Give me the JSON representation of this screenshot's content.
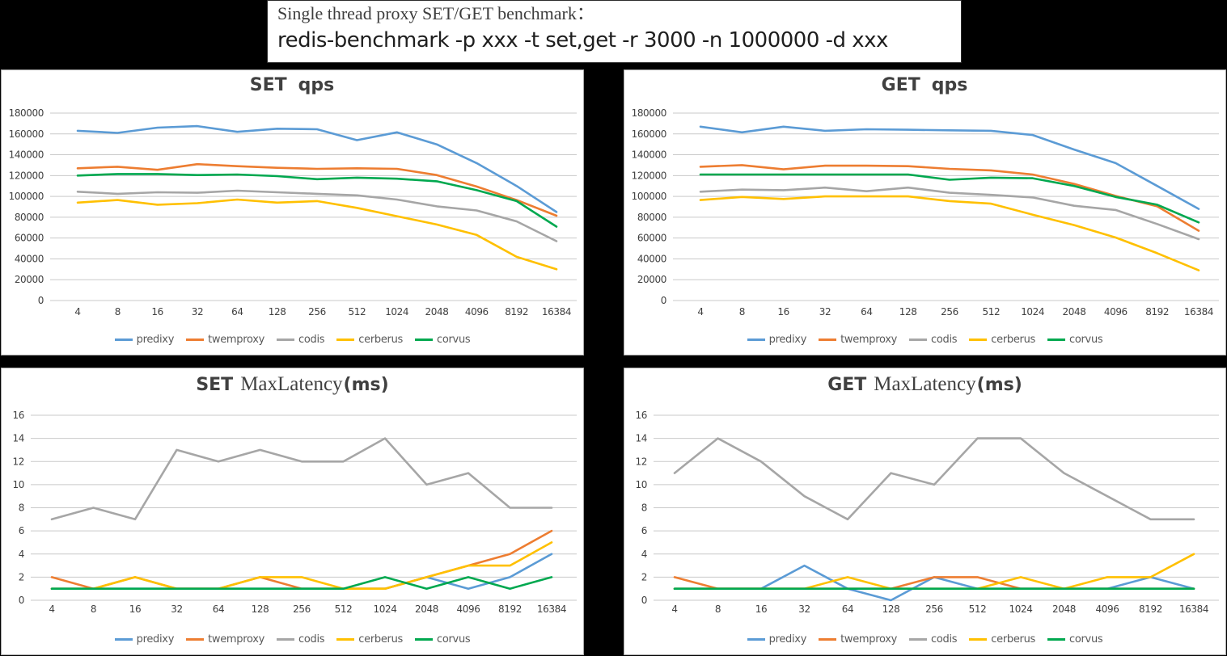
{
  "header": {
    "line1": "Single thread proxy SET/GET benchmark：",
    "line2": "redis-benchmark -p xxx -t set,get -r 3000 -n 1000000 -d xxx"
  },
  "colors": {
    "predixy": "#5B9BD5",
    "twemproxy": "#ED7D31",
    "codis": "#A6A6A6",
    "cerberus": "#FFC000",
    "corvus": "#00A84F",
    "gridline": "#C9C9C9",
    "panel_background": "#FFFFFF",
    "page_background": "#000000",
    "title_text": "#404040",
    "legend_text": "#595959"
  },
  "legend_labels": [
    "predixy",
    "twemproxy",
    "codis",
    "cerberus",
    "corvus"
  ],
  "chart_data": [
    {
      "type": "line",
      "title": "SET qps",
      "title_prefix": "SET",
      "title_main": "qps",
      "title_suffix": "",
      "categories": [
        "4",
        "8",
        "16",
        "32",
        "64",
        "128",
        "256",
        "512",
        "1024",
        "2048",
        "4096",
        "8192",
        "16384"
      ],
      "xlabel": "",
      "ylabel": "",
      "ylim": [
        0,
        180000
      ],
      "ytick_step": 20000,
      "y_ticks": [
        0,
        20000,
        40000,
        60000,
        80000,
        100000,
        120000,
        140000,
        160000,
        180000
      ],
      "grid": true,
      "legend_position": "bottom",
      "series": [
        {
          "name": "predixy",
          "color": "#5B9BD5",
          "values": [
            163000,
            161000,
            166000,
            167500,
            162000,
            165000,
            164500,
            154000,
            161500,
            150000,
            132000,
            110000,
            85000
          ]
        },
        {
          "name": "twemproxy",
          "color": "#ED7D31",
          "values": [
            127000,
            128500,
            125500,
            131000,
            129000,
            127500,
            126500,
            127000,
            126500,
            120500,
            109500,
            96500,
            81500
          ]
        },
        {
          "name": "codis",
          "color": "#A6A6A6",
          "values": [
            104500,
            102500,
            104000,
            103500,
            105500,
            104000,
            102500,
            101000,
            97000,
            90500,
            86500,
            76000,
            57000
          ]
        },
        {
          "name": "cerberus",
          "color": "#FFC000",
          "values": [
            94000,
            96500,
            92000,
            93500,
            97000,
            94000,
            95500,
            89000,
            81000,
            73000,
            63000,
            42000,
            30000
          ]
        },
        {
          "name": "corvus",
          "color": "#00A84F",
          "values": [
            120000,
            121500,
            121500,
            120500,
            121000,
            119500,
            116500,
            118000,
            117000,
            114500,
            106000,
            95500,
            71000
          ]
        }
      ]
    },
    {
      "type": "line",
      "title": "GET qps",
      "title_prefix": "GET",
      "title_main": "qps",
      "title_suffix": "",
      "categories": [
        "4",
        "8",
        "16",
        "32",
        "64",
        "128",
        "256",
        "512",
        "1024",
        "2048",
        "4096",
        "8192",
        "16384"
      ],
      "xlabel": "",
      "ylabel": "",
      "ylim": [
        0,
        180000
      ],
      "ytick_step": 20000,
      "y_ticks": [
        0,
        20000,
        40000,
        60000,
        80000,
        100000,
        120000,
        140000,
        160000,
        180000
      ],
      "grid": true,
      "legend_position": "bottom",
      "series": [
        {
          "name": "predixy",
          "color": "#5B9BD5",
          "values": [
            167000,
            161500,
            167000,
            163000,
            164500,
            164000,
            163500,
            163000,
            159000,
            145000,
            132000,
            110000,
            88000
          ]
        },
        {
          "name": "twemproxy",
          "color": "#ED7D31",
          "values": [
            128500,
            130000,
            126000,
            129500,
            129500,
            129000,
            126500,
            125000,
            121000,
            112000,
            100500,
            90500,
            67000
          ]
        },
        {
          "name": "codis",
          "color": "#A6A6A6",
          "values": [
            104500,
            106500,
            106000,
            108500,
            105000,
            108500,
            103500,
            101500,
            99000,
            91000,
            87000,
            73500,
            59000
          ]
        },
        {
          "name": "cerberus",
          "color": "#FFC000",
          "values": [
            96500,
            99500,
            97500,
            100000,
            100000,
            100000,
            95500,
            93000,
            82500,
            72500,
            60500,
            45500,
            29000
          ]
        },
        {
          "name": "corvus",
          "color": "#00A84F",
          "values": [
            121000,
            121000,
            121000,
            121000,
            121000,
            121000,
            116000,
            118000,
            117500,
            110000,
            99500,
            92000,
            75000
          ]
        }
      ]
    },
    {
      "type": "line",
      "title": "SET MaxLatency(ms)",
      "title_prefix": "SET",
      "title_main": "MaxLatency",
      "title_suffix": "(ms)",
      "categories": [
        "4",
        "8",
        "16",
        "32",
        "64",
        "128",
        "256",
        "512",
        "1024",
        "2048",
        "4096",
        "8192",
        "16384"
      ],
      "xlabel": "",
      "ylabel": "",
      "ylim": [
        0,
        16
      ],
      "ytick_step": 2,
      "y_ticks": [
        0,
        2,
        4,
        6,
        8,
        10,
        12,
        14,
        16
      ],
      "grid": true,
      "legend_position": "bottom",
      "series": [
        {
          "name": "predixy",
          "color": "#5B9BD5",
          "values": [
            1,
            1,
            1,
            1,
            1,
            1,
            1,
            1,
            1,
            2,
            1,
            2,
            4
          ]
        },
        {
          "name": "twemproxy",
          "color": "#ED7D31",
          "values": [
            2,
            1,
            2,
            1,
            1,
            2,
            1,
            1,
            1,
            2,
            3,
            4,
            6
          ]
        },
        {
          "name": "codis",
          "color": "#A6A6A6",
          "values": [
            7,
            8,
            7,
            13,
            12,
            13,
            12,
            12,
            14,
            10,
            11,
            8,
            8
          ]
        },
        {
          "name": "cerberus",
          "color": "#FFC000",
          "values": [
            1,
            1,
            2,
            1,
            1,
            2,
            2,
            1,
            1,
            2,
            3,
            3,
            5
          ]
        },
        {
          "name": "corvus",
          "color": "#00A84F",
          "values": [
            1,
            1,
            1,
            1,
            1,
            1,
            1,
            1,
            2,
            1,
            2,
            1,
            2
          ]
        }
      ]
    },
    {
      "type": "line",
      "title": "GET MaxLatency(ms)",
      "title_prefix": "GET",
      "title_main": "MaxLatency",
      "title_suffix": "(ms)",
      "categories": [
        "4",
        "8",
        "16",
        "32",
        "64",
        "128",
        "256",
        "512",
        "1024",
        "2048",
        "4096",
        "8192",
        "16384"
      ],
      "xlabel": "",
      "ylabel": "",
      "ylim": [
        0,
        16
      ],
      "ytick_step": 2,
      "y_ticks": [
        0,
        2,
        4,
        6,
        8,
        10,
        12,
        14,
        16
      ],
      "grid": true,
      "legend_position": "bottom",
      "series": [
        {
          "name": "predixy",
          "color": "#5B9BD5",
          "values": [
            1,
            1,
            1,
            3,
            1,
            0,
            2,
            1,
            1,
            1,
            1,
            2,
            1
          ]
        },
        {
          "name": "twemproxy",
          "color": "#ED7D31",
          "values": [
            2,
            1,
            1,
            1,
            1,
            1,
            2,
            2,
            1,
            1,
            1,
            1,
            1
          ]
        },
        {
          "name": "codis",
          "color": "#A6A6A6",
          "values": [
            11,
            14,
            12,
            9,
            7,
            11,
            10,
            14,
            14,
            11,
            9,
            7,
            7
          ]
        },
        {
          "name": "cerberus",
          "color": "#FFC000",
          "values": [
            1,
            1,
            1,
            1,
            2,
            1,
            1,
            1,
            2,
            1,
            2,
            2,
            4
          ]
        },
        {
          "name": "corvus",
          "color": "#00A84F",
          "values": [
            1,
            1,
            1,
            1,
            1,
            1,
            1,
            1,
            1,
            1,
            1,
            1,
            1
          ]
        }
      ]
    }
  ]
}
